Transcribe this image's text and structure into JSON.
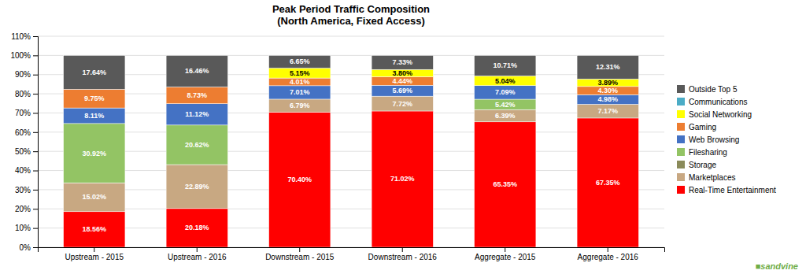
{
  "chart_data": {
    "type": "bar",
    "stacked": true,
    "title": "Peak Period Traffic Composition\n(North America, Fixed Access)",
    "categories": [
      "Upstream - 2015",
      "Upstream - 2016",
      "Downstream - 2015",
      "Downstream - 2016",
      "Aggregate - 2015",
      "Aggregate - 2016"
    ],
    "series": [
      {
        "name": "Real-Time Entertainment",
        "color": "#FF0000",
        "values": [
          18.56,
          20.18,
          70.4,
          71.02,
          65.35,
          67.35
        ],
        "value_labels": [
          "18.56%",
          "20.18%",
          "70.40%",
          "71.02%",
          "65.35%",
          "67.35%"
        ]
      },
      {
        "name": "Marketplaces",
        "color": "#C8A882",
        "values": [
          15.02,
          22.89,
          6.79,
          7.72,
          6.39,
          7.17
        ],
        "value_labels": [
          "15.02%",
          "22.89%",
          "6.79%",
          "7.72%",
          "6.39%",
          "7.17%"
        ]
      },
      {
        "name": "Storage",
        "color": "#8B8B5A",
        "values": [
          0,
          0,
          0,
          0,
          0,
          0
        ]
      },
      {
        "name": "Filesharing",
        "color": "#93C464",
        "values": [
          30.92,
          20.62,
          0,
          0,
          5.42,
          0
        ],
        "value_labels": [
          "30.92%",
          "20.62%",
          null,
          null,
          "5.42%",
          null
        ]
      },
      {
        "name": "Web Browsing",
        "color": "#4472C4",
        "values": [
          8.11,
          11.12,
          7.01,
          5.69,
          7.09,
          4.98
        ],
        "value_labels": [
          "8.11%",
          "11.12%",
          "7.01%",
          "5.69%",
          "7.09%",
          "4.98%"
        ]
      },
      {
        "name": "Gaming",
        "color": "#ED7D31",
        "values": [
          9.75,
          8.73,
          4.01,
          4.44,
          0,
          4.3
        ],
        "value_labels": [
          "9.75%",
          "8.73%",
          "4.01%",
          "4.44%",
          null,
          "4.30%"
        ]
      },
      {
        "name": "Social Networking",
        "color": "#FFFF00",
        "values": [
          0,
          0,
          5.15,
          3.8,
          5.04,
          3.89
        ],
        "value_labels": [
          null,
          null,
          "5.15%",
          "3.80%",
          "5.04%",
          "3.89%"
        ]
      },
      {
        "name": "Communications",
        "color": "#4BACC6",
        "values": [
          0,
          0,
          0,
          0,
          0,
          0
        ]
      },
      {
        "name": "Outside Top 5",
        "color": "#595959",
        "values": [
          17.64,
          16.46,
          6.65,
          7.33,
          10.71,
          12.31
        ],
        "value_labels": [
          "17.64%",
          "16.46%",
          "6.65%",
          "7.33%",
          "10.71%",
          "12.31%"
        ]
      }
    ],
    "data_labels": true,
    "ylim": [
      0,
      110
    ],
    "yticks": [
      {
        "value": 0,
        "label": "0%"
      },
      {
        "value": 10,
        "label": "10%"
      },
      {
        "value": 20,
        "label": "20%"
      },
      {
        "value": 30,
        "label": "30%"
      },
      {
        "value": 40,
        "label": "40%"
      },
      {
        "value": 50,
        "label": "50%"
      },
      {
        "value": 60,
        "label": "60%"
      },
      {
        "value": 70,
        "label": "70%"
      },
      {
        "value": 80,
        "label": "80%"
      },
      {
        "value": 90,
        "label": "90%"
      },
      {
        "value": 100,
        "label": "100%"
      },
      {
        "value": 110,
        "label": "110%"
      }
    ],
    "grid": true,
    "legend": "right",
    "annotations": [
      {
        "text": "■sandvine",
        "color": "#70AD47"
      }
    ]
  }
}
